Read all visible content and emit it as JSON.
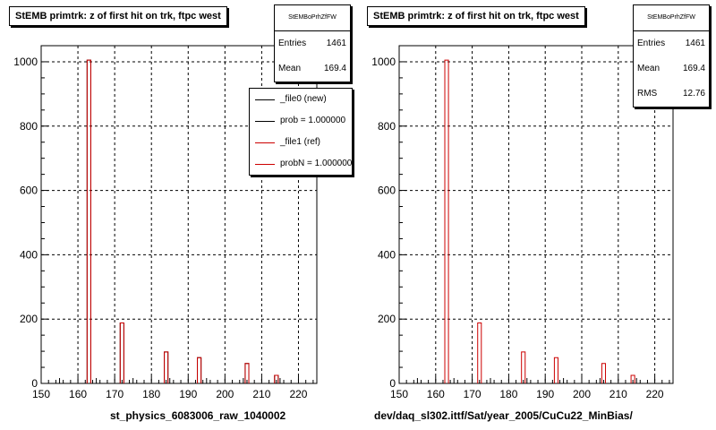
{
  "colors": {
    "background": "#ffffff",
    "frame": "#000000",
    "grid": "#000000",
    "new_histogram": "#000000",
    "ref_histogram": "#cc0000"
  },
  "left_panel": {
    "title": "StEMB primtrk: z of first hit on trk, ftpc west",
    "stats": {
      "name": "StEMBoPrhZfFW",
      "entries_label": "Entries",
      "entries_value": "1461",
      "mean_label": "Mean",
      "mean_value": "169.4"
    },
    "legend": [
      {
        "label": "_file0 (new)",
        "color": "#000000"
      },
      {
        "label": "prob = 1.000000",
        "color": "#000000"
      },
      {
        "label": "_file1 (ref)",
        "color": "#cc0000"
      },
      {
        "label": "probN = 1.000000",
        "color": "#cc0000"
      }
    ],
    "footer": "st_physics_6083006_raw_1040002"
  },
  "right_panel": {
    "title": "StEMB primtrk: z of first hit on trk, ftpc west",
    "stats": {
      "name": "StEMBoPrhZfFW",
      "entries_label": "Entries",
      "entries_value": "1461",
      "mean_label": "Mean",
      "mean_value": "169.4",
      "rms_label": "RMS",
      "rms_value": "12.76"
    },
    "footer": "dev/daq_sl302.ittf/Sat/year_2005/CuCu22_MinBias/"
  },
  "chart_data": [
    {
      "type": "bar",
      "title": "StEMB primtrk: z of first hit on trk, ftpc west",
      "xlim": [
        150,
        225
      ],
      "ylim": [
        0,
        1050
      ],
      "xticks": [
        150,
        160,
        170,
        180,
        190,
        200,
        210,
        220
      ],
      "yticks": [
        0,
        200,
        400,
        600,
        800,
        1000
      ],
      "grid": true,
      "legend_position": "top-right",
      "series": [
        {
          "name": "_file0 (new)",
          "color": "#000000",
          "bins": [
            {
              "x0": 162.5,
              "x1": 163.5,
              "y": 1005
            },
            {
              "x0": 171.5,
              "x1": 172.5,
              "y": 188
            },
            {
              "x0": 183.5,
              "x1": 184.5,
              "y": 98
            },
            {
              "x0": 192.5,
              "x1": 193.5,
              "y": 80
            },
            {
              "x0": 205.5,
              "x1": 206.5,
              "y": 62
            },
            {
              "x0": 213.5,
              "x1": 214.5,
              "y": 25
            }
          ]
        },
        {
          "name": "_file1 (ref)",
          "color": "#cc0000",
          "bins": [
            {
              "x0": 162.5,
              "x1": 163.5,
              "y": 1005
            },
            {
              "x0": 171.5,
              "x1": 172.5,
              "y": 188
            },
            {
              "x0": 183.5,
              "x1": 184.5,
              "y": 98
            },
            {
              "x0": 192.5,
              "x1": 193.5,
              "y": 80
            },
            {
              "x0": 205.5,
              "x1": 206.5,
              "y": 62
            },
            {
              "x0": 213.5,
              "x1": 214.5,
              "y": 25
            }
          ]
        }
      ]
    },
    {
      "type": "bar",
      "title": "StEMB primtrk: z of first hit on trk, ftpc west",
      "xlim": [
        150,
        225
      ],
      "ylim": [
        0,
        1050
      ],
      "xticks": [
        150,
        160,
        170,
        180,
        190,
        200,
        210,
        220
      ],
      "yticks": [
        0,
        200,
        400,
        600,
        800,
        1000
      ],
      "grid": true,
      "series": [
        {
          "color": "#cc0000",
          "bins": [
            {
              "x0": 162.5,
              "x1": 163.5,
              "y": 1005
            },
            {
              "x0": 171.5,
              "x1": 172.5,
              "y": 188
            },
            {
              "x0": 183.5,
              "x1": 184.5,
              "y": 98
            },
            {
              "x0": 192.5,
              "x1": 193.5,
              "y": 80
            },
            {
              "x0": 205.5,
              "x1": 206.5,
              "y": 62
            },
            {
              "x0": 213.5,
              "x1": 214.5,
              "y": 25
            }
          ]
        }
      ]
    }
  ]
}
